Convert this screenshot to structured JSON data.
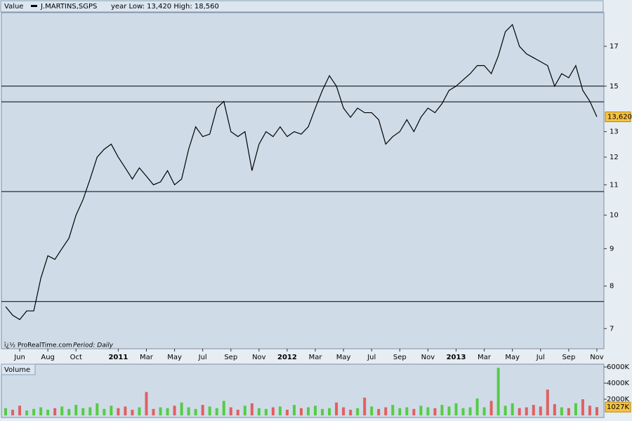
{
  "chart_data": [
    {
      "type": "line",
      "header": "Value",
      "legend": "J.MARTINS,SGPS",
      "info": "year Low: 13,420 High: 18,560",
      "footer": "ï¿½ ProRealTime.com",
      "period": "Period: Daily",
      "log": true,
      "color": "#000000",
      "xlim": [
        -1.3,
        41.5
      ],
      "ylim": [
        6.57,
        18.9
      ],
      "yticks": [
        7,
        8,
        9,
        10,
        11,
        12,
        13,
        15,
        17
      ],
      "xticks": [
        {
          "value": 0,
          "label": "Jun"
        },
        {
          "value": 2,
          "label": "Aug"
        },
        {
          "value": 4,
          "label": "Oct"
        },
        {
          "value": 7,
          "label": "2011"
        },
        {
          "value": 9,
          "label": "Mar"
        },
        {
          "value": 11,
          "label": "May"
        },
        {
          "value": 13,
          "label": "Jul"
        },
        {
          "value": 15,
          "label": "Sep"
        },
        {
          "value": 17,
          "label": "Nov"
        },
        {
          "value": 19,
          "label": "2012"
        },
        {
          "value": 21,
          "label": "Mar"
        },
        {
          "value": 23,
          "label": "May"
        },
        {
          "value": 25,
          "label": "Jul"
        },
        {
          "value": 27,
          "label": "Sep"
        },
        {
          "value": 29,
          "label": "Nov"
        },
        {
          "value": 31,
          "label": "2013"
        },
        {
          "value": 33,
          "label": "Mar"
        },
        {
          "value": 35,
          "label": "May"
        },
        {
          "value": 37,
          "label": "Jul"
        },
        {
          "value": 39,
          "label": "Sep"
        },
        {
          "value": 41,
          "label": "Nov"
        }
      ],
      "hlines": [
        15.0,
        14.28,
        10.77,
        7.62
      ],
      "last": {
        "value": 13.62,
        "label": "13,620"
      },
      "x": [
        -1,
        -0.5,
        0,
        0.5,
        1,
        1.5,
        2,
        2.5,
        3,
        3.5,
        4,
        4.5,
        5,
        5.5,
        6,
        6.5,
        7,
        7.5,
        8,
        8.5,
        9,
        9.5,
        10,
        10.5,
        11,
        11.5,
        12,
        12.5,
        13,
        13.5,
        14,
        14.5,
        15,
        15.5,
        16,
        16.5,
        17,
        17.5,
        18,
        18.5,
        19,
        19.5,
        20,
        20.5,
        21,
        21.5,
        22,
        22.5,
        23,
        23.5,
        24,
        24.5,
        25,
        25.5,
        26,
        26.5,
        27,
        27.5,
        28,
        28.5,
        29,
        29.5,
        30,
        30.5,
        31,
        31.5,
        32,
        32.5,
        33,
        33.5,
        34,
        34.5,
        35,
        35.5,
        36,
        36.5,
        37,
        37.5,
        38,
        38.5,
        39,
        39.5,
        40,
        40.5,
        41
      ],
      "values": [
        7.5,
        7.3,
        7.2,
        7.4,
        7.4,
        8.2,
        8.8,
        8.7,
        9.0,
        9.3,
        10.0,
        10.5,
        11.2,
        12.0,
        12.3,
        12.5,
        12.0,
        11.6,
        11.2,
        11.6,
        11.3,
        11.0,
        11.1,
        11.5,
        11.0,
        11.2,
        12.3,
        13.2,
        12.8,
        12.9,
        14.0,
        14.3,
        13.0,
        12.8,
        13.0,
        11.5,
        12.5,
        13.0,
        12.8,
        13.2,
        12.8,
        13.0,
        12.9,
        13.2,
        14.0,
        14.8,
        15.5,
        15.0,
        14.0,
        13.6,
        14.0,
        13.8,
        13.8,
        13.5,
        12.5,
        12.8,
        13.0,
        13.5,
        13.0,
        13.6,
        14.0,
        13.8,
        14.2,
        14.8,
        15.0,
        15.3,
        15.6,
        16.0,
        16.0,
        15.6,
        16.5,
        17.8,
        18.2,
        17.0,
        16.6,
        16.4,
        16.2,
        16.0,
        15.0,
        15.6,
        15.4,
        16.0,
        14.8,
        14.3,
        13.62
      ]
    },
    {
      "type": "bar",
      "title": "Volume",
      "up_color": "#55cc44",
      "down_color": "#e06060",
      "xlim": [
        -1.3,
        41.5
      ],
      "ylim": [
        0,
        6350
      ],
      "yticks": [
        {
          "value": 6000,
          "label": "6000K"
        },
        {
          "value": 4000,
          "label": "4000K"
        },
        {
          "value": 2000,
          "label": "2000K"
        }
      ],
      "last": {
        "value": 1027,
        "label": "1027K"
      },
      "x": [
        -1,
        -0.5,
        0,
        0.5,
        1,
        1.5,
        2,
        2.5,
        3,
        3.5,
        4,
        4.5,
        5,
        5.5,
        6,
        6.5,
        7,
        7.5,
        8,
        8.5,
        9,
        9.5,
        10,
        10.5,
        11,
        11.5,
        12,
        12.5,
        13,
        13.5,
        14,
        14.5,
        15,
        15.5,
        16,
        16.5,
        17,
        17.5,
        18,
        18.5,
        19,
        19.5,
        20,
        20.5,
        21,
        21.5,
        22,
        22.5,
        23,
        23.5,
        24,
        24.5,
        25,
        25.5,
        26,
        26.5,
        27,
        27.5,
        28,
        28.5,
        29,
        29.5,
        30,
        30.5,
        31,
        31.5,
        32,
        32.5,
        33,
        33.5,
        34,
        34.5,
        35,
        35.5,
        36,
        36.5,
        37,
        37.5,
        38,
        38.5,
        39,
        39.5,
        40,
        40.5,
        41
      ],
      "values": [
        900,
        700,
        1200,
        600,
        800,
        1000,
        700,
        900,
        1100,
        800,
        1300,
        900,
        1000,
        1500,
        800,
        1200,
        900,
        1100,
        700,
        1000,
        2900,
        800,
        1000,
        900,
        1200,
        1600,
        1000,
        800,
        1300,
        1100,
        900,
        1800,
        1000,
        700,
        1200,
        1500,
        900,
        800,
        1000,
        1100,
        700,
        1300,
        900,
        1000,
        1200,
        800,
        900,
        1600,
        1000,
        700,
        900,
        2200,
        1100,
        800,
        1000,
        1300,
        900,
        1000,
        800,
        1200,
        1000,
        900,
        1300,
        1100,
        1500,
        900,
        1000,
        2100,
        1000,
        1800,
        5900,
        1200,
        1500,
        900,
        1000,
        1300,
        1100,
        3200,
        1400,
        1000,
        900,
        1500,
        2000,
        1200,
        1027
      ]
    }
  ]
}
